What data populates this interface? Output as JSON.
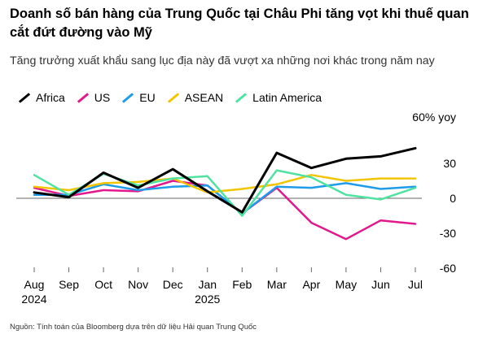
{
  "header": {
    "title": "Doanh số bán hàng của Trung Quốc tại Châu Phi tăng vọt khi thuế quan cắt đứt đường vào Mỹ",
    "subtitle": "Tăng trưởng xuất khẩu sang lục địa này đã vượt xa những nơi khác trong năm nay"
  },
  "footer": {
    "source": "Nguồn: Tính toán của Bloomberg dựa trên dữ liệu Hải quan Trung Quốc"
  },
  "chart_data": {
    "type": "line",
    "title": "Doanh số bán hàng của Trung Quốc tại Châu Phi tăng vọt khi thuế quan cắt đứt đường vào Mỹ",
    "subtitle": "Tăng trưởng xuất khẩu sang lục địa này đã vượt xa những nơi khác trong năm nay",
    "x": [
      "Aug",
      "Sep",
      "Oct",
      "Nov",
      "Dec",
      "Jan",
      "Feb",
      "Mar",
      "Apr",
      "May",
      "Jun",
      "Jul"
    ],
    "x_year_labels": [
      {
        "index": 0,
        "label": "2024"
      },
      {
        "index": 5,
        "label": "2025"
      }
    ],
    "y_unit_label": "60% yoy",
    "y_ticks": [
      30,
      0,
      -30,
      -60
    ],
    "ylim": [
      -64,
      64
    ],
    "grid": false,
    "legend_position": "top-left",
    "zero_line": true,
    "series": [
      {
        "name": "Africa",
        "color": "#000000",
        "values": [
          5,
          1,
          22,
          9,
          25,
          6,
          -12,
          39,
          26,
          34,
          36,
          43
        ]
      },
      {
        "name": "US",
        "color": "#e2198c",
        "values": [
          9,
          2,
          7,
          6,
          15,
          11,
          -13,
          9,
          -21,
          -35,
          -19,
          -22
        ]
      },
      {
        "name": "EU",
        "color": "#1e9cea",
        "values": [
          3,
          3,
          12,
          7,
          10,
          11,
          -13,
          10,
          9,
          13,
          8,
          10
        ]
      },
      {
        "name": "ASEAN",
        "color": "#f2c500",
        "values": [
          10,
          7,
          13,
          14,
          17,
          5,
          8,
          12,
          20,
          15,
          17,
          17
        ]
      },
      {
        "name": "Latin America",
        "color": "#4fe2a0",
        "values": [
          20,
          3,
          21,
          11,
          17,
          19,
          -15,
          24,
          18,
          3,
          -1,
          9
        ]
      }
    ]
  }
}
